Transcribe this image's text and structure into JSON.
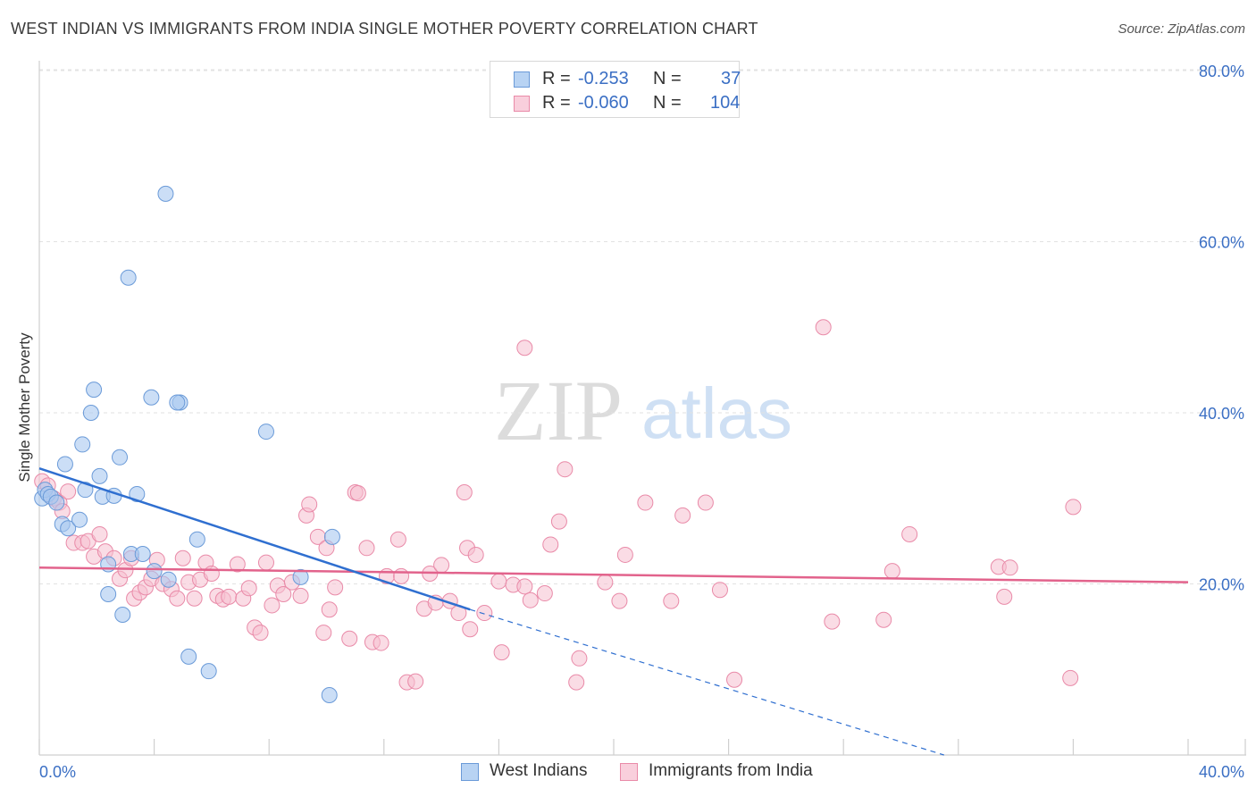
{
  "title": "WEST INDIAN VS IMMIGRANTS FROM INDIA SINGLE MOTHER POVERTY CORRELATION CHART",
  "source": "Source: ZipAtlas.com",
  "watermark": {
    "zip": "ZIP",
    "atlas": "atlas"
  },
  "legend": {
    "rows": [
      {
        "r_label": "R =",
        "r_value": "-0.253",
        "n_label": "N =",
        "n_value": "37"
      },
      {
        "r_label": "R =",
        "r_value": "-0.060",
        "n_label": "N =",
        "n_value": "104"
      }
    ]
  },
  "colors": {
    "blue_fill": "#a9c8f0",
    "blue_stroke": "#6a9ad8",
    "blue_line": "#2f6fd0",
    "pink_fill": "#f6bfd0",
    "pink_stroke": "#e98aa8",
    "pink_line": "#e2638c",
    "axis_label": "#3b6fc4",
    "grid": "#e2e2e2"
  },
  "chart_data": {
    "type": "scatter",
    "title": "WEST INDIAN VS IMMIGRANTS FROM INDIA SINGLE MOTHER POVERTY CORRELATION CHART",
    "xlabel": "",
    "ylabel": "Single Mother Poverty",
    "xlim": [
      0,
      40
    ],
    "ylim": [
      0,
      80
    ],
    "x_tick_labels": [
      "0.0%",
      "40.0%"
    ],
    "y_ticks": [
      20,
      40,
      60,
      80
    ],
    "y_tick_labels": [
      "20.0%",
      "40.0%",
      "60.0%",
      "80.0%"
    ],
    "series": [
      {
        "name": "West Indians",
        "points": [
          [
            0.1,
            30.0
          ],
          [
            0.2,
            31.0
          ],
          [
            0.3,
            30.5
          ],
          [
            0.4,
            30.2
          ],
          [
            0.6,
            29.5
          ],
          [
            0.8,
            27.0
          ],
          [
            1.0,
            26.5
          ],
          [
            1.4,
            27.5
          ],
          [
            0.9,
            34.0
          ],
          [
            1.5,
            36.3
          ],
          [
            1.8,
            40.0
          ],
          [
            1.9,
            42.7
          ],
          [
            1.6,
            31.0
          ],
          [
            2.1,
            32.6
          ],
          [
            2.2,
            30.2
          ],
          [
            2.6,
            30.3
          ],
          [
            2.8,
            34.8
          ],
          [
            3.4,
            30.5
          ],
          [
            3.1,
            55.8
          ],
          [
            4.4,
            65.6
          ],
          [
            3.9,
            41.8
          ],
          [
            4.9,
            41.2
          ],
          [
            4.8,
            41.2
          ],
          [
            7.9,
            37.8
          ],
          [
            2.4,
            22.3
          ],
          [
            3.2,
            23.5
          ],
          [
            3.6,
            23.5
          ],
          [
            4.0,
            21.5
          ],
          [
            4.5,
            20.5
          ],
          [
            5.5,
            25.2
          ],
          [
            2.4,
            18.8
          ],
          [
            2.9,
            16.4
          ],
          [
            5.2,
            11.5
          ],
          [
            5.9,
            9.8
          ],
          [
            10.1,
            7.0
          ],
          [
            10.2,
            25.5
          ],
          [
            9.1,
            20.8
          ]
        ]
      },
      {
        "name": "Immigrants from India",
        "points": [
          [
            0.1,
            32.0
          ],
          [
            0.3,
            31.5
          ],
          [
            0.5,
            30.0
          ],
          [
            0.7,
            29.5
          ],
          [
            0.8,
            28.5
          ],
          [
            1.0,
            30.8
          ],
          [
            1.2,
            24.8
          ],
          [
            1.5,
            24.8
          ],
          [
            1.7,
            25.0
          ],
          [
            1.9,
            23.2
          ],
          [
            2.1,
            25.8
          ],
          [
            2.3,
            23.8
          ],
          [
            2.6,
            23.0
          ],
          [
            2.8,
            20.6
          ],
          [
            3.0,
            21.6
          ],
          [
            3.2,
            23.0
          ],
          [
            3.3,
            18.3
          ],
          [
            3.5,
            19.0
          ],
          [
            3.7,
            19.6
          ],
          [
            3.9,
            20.6
          ],
          [
            4.1,
            22.8
          ],
          [
            4.3,
            20.0
          ],
          [
            4.6,
            19.4
          ],
          [
            4.8,
            18.3
          ],
          [
            5.0,
            23.0
          ],
          [
            5.2,
            20.2
          ],
          [
            5.4,
            18.3
          ],
          [
            5.6,
            20.5
          ],
          [
            5.8,
            22.5
          ],
          [
            6.0,
            21.2
          ],
          [
            6.2,
            18.6
          ],
          [
            6.4,
            18.2
          ],
          [
            6.6,
            18.5
          ],
          [
            6.9,
            22.3
          ],
          [
            7.1,
            18.3
          ],
          [
            7.3,
            19.5
          ],
          [
            7.5,
            14.9
          ],
          [
            7.7,
            14.3
          ],
          [
            7.9,
            22.5
          ],
          [
            8.1,
            17.5
          ],
          [
            8.3,
            19.8
          ],
          [
            8.5,
            18.8
          ],
          [
            8.8,
            20.2
          ],
          [
            9.1,
            18.6
          ],
          [
            9.3,
            28.0
          ],
          [
            9.4,
            29.3
          ],
          [
            9.7,
            25.5
          ],
          [
            10.0,
            24.2
          ],
          [
            10.1,
            17.0
          ],
          [
            10.3,
            19.6
          ],
          [
            9.9,
            14.3
          ],
          [
            10.8,
            13.6
          ],
          [
            11.0,
            30.7
          ],
          [
            11.1,
            30.6
          ],
          [
            11.4,
            24.2
          ],
          [
            11.6,
            13.2
          ],
          [
            11.9,
            13.1
          ],
          [
            12.1,
            20.9
          ],
          [
            12.5,
            25.2
          ],
          [
            12.6,
            20.9
          ],
          [
            12.8,
            8.5
          ],
          [
            13.1,
            8.6
          ],
          [
            13.4,
            17.1
          ],
          [
            13.6,
            21.2
          ],
          [
            13.8,
            17.8
          ],
          [
            14.0,
            22.2
          ],
          [
            14.3,
            18.0
          ],
          [
            14.6,
            16.6
          ],
          [
            14.9,
            24.2
          ],
          [
            15.2,
            23.4
          ],
          [
            14.8,
            30.7
          ],
          [
            15.0,
            14.7
          ],
          [
            15.5,
            16.6
          ],
          [
            16.0,
            20.3
          ],
          [
            16.1,
            12.0
          ],
          [
            16.5,
            19.9
          ],
          [
            16.9,
            19.7
          ],
          [
            17.1,
            18.1
          ],
          [
            17.6,
            18.9
          ],
          [
            17.8,
            24.6
          ],
          [
            18.1,
            27.3
          ],
          [
            18.3,
            33.4
          ],
          [
            16.9,
            47.6
          ],
          [
            18.7,
            8.5
          ],
          [
            18.8,
            11.3
          ],
          [
            19.7,
            20.2
          ],
          [
            20.2,
            18.0
          ],
          [
            20.4,
            23.4
          ],
          [
            21.1,
            29.5
          ],
          [
            22.0,
            18.0
          ],
          [
            22.4,
            28.0
          ],
          [
            23.2,
            29.5
          ],
          [
            23.7,
            19.3
          ],
          [
            24.2,
            8.8
          ],
          [
            27.3,
            50.0
          ],
          [
            27.6,
            15.6
          ],
          [
            29.4,
            15.8
          ],
          [
            29.7,
            21.5
          ],
          [
            30.3,
            25.8
          ],
          [
            33.4,
            22.0
          ],
          [
            33.6,
            18.5
          ],
          [
            33.8,
            21.9
          ],
          [
            35.9,
            9.0
          ],
          [
            36.0,
            29.0
          ]
        ]
      }
    ],
    "trend_lines": [
      {
        "series": "West Indians",
        "x0": 0.0,
        "y0": 33.5,
        "x1": 15.0,
        "y1": 17.0,
        "dashed_to_x": 31.5,
        "dashed_to_y": 0.0
      },
      {
        "series": "Immigrants from India",
        "x0": 0.0,
        "y0": 21.9,
        "x1": 40.0,
        "y1": 20.2
      }
    ]
  }
}
